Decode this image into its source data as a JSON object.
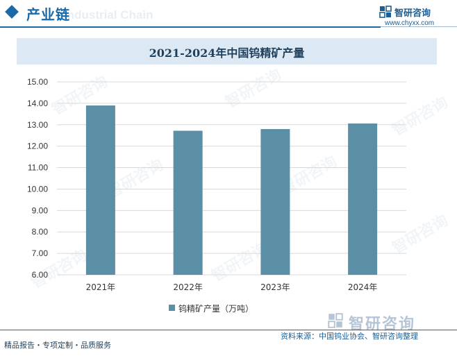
{
  "header": {
    "title": "产业链",
    "subtitle_watermark": "Industrial Chain",
    "brand_name": "智研咨询",
    "brand_url": "www.chyxx.com"
  },
  "watermark_text": "智研咨询",
  "chart_data": {
    "type": "bar",
    "title": "2021-2024年中国钨精矿产量",
    "categories": [
      "2021年",
      "2022年",
      "2023年",
      "2024年"
    ],
    "series": [
      {
        "name": "钨精矿产量（万吨）",
        "values": [
          13.9,
          12.72,
          12.8,
          13.06
        ],
        "color": "#5b8fa6"
      }
    ],
    "ylim": [
      6.0,
      15.0
    ],
    "yticks": [
      "6.00",
      "7.00",
      "8.00",
      "9.00",
      "10.00",
      "11.00",
      "12.00",
      "13.00",
      "14.00",
      "15.00"
    ],
    "grid": true,
    "legend_position": "bottom"
  },
  "footer": {
    "left_text": "精品报告・专项定制・品质服务",
    "source_text": "资料来源：中国钨业协会、智研咨询整理",
    "brand_name": "智研咨询"
  }
}
